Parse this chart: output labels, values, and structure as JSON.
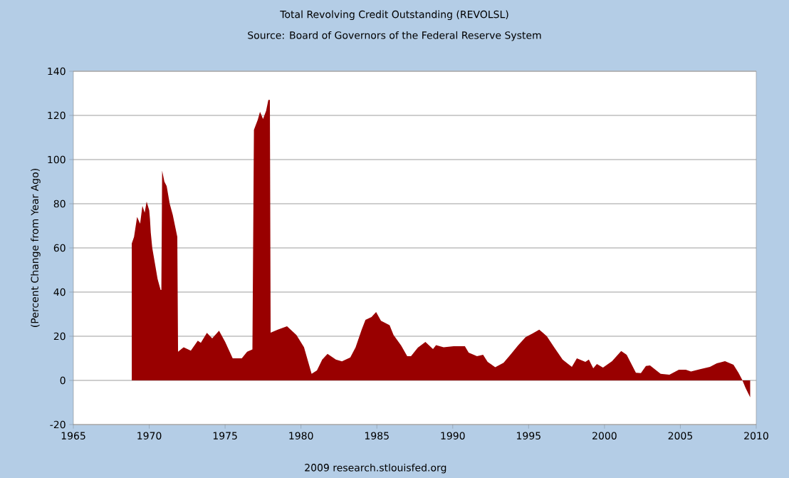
{
  "chart_data": {
    "type": "area",
    "title": "Total Revolving Credit Outstanding (REVOLSL)",
    "subtitle": "Source: Board of Governors of the Federal Reserve System",
    "ylabel": "(Percent Change from Year Ago)",
    "annotations": [
      "2009 research.stlouisfed.org"
    ],
    "color": "#990000",
    "grid": "y",
    "xlim": [
      1965,
      2010
    ],
    "xticks": [
      1965,
      1970,
      1975,
      1980,
      1985,
      1990,
      1995,
      2000,
      2005,
      2010
    ],
    "ylim": [
      -20,
      140
    ],
    "yticks": [
      -20,
      0,
      20,
      40,
      60,
      80,
      100,
      120,
      140
    ],
    "x": [
      1968.85,
      1969.0,
      1969.2,
      1969.4,
      1969.55,
      1969.7,
      1969.83,
      1970.0,
      1970.05,
      1970.1,
      1970.2,
      1970.4,
      1970.55,
      1970.75,
      1970.8,
      1970.85,
      1971.0,
      1971.15,
      1971.35,
      1971.55,
      1971.7,
      1971.85,
      1971.9,
      1972.27,
      1972.74,
      1973.2,
      1973.4,
      1973.8,
      1974.15,
      1974.6,
      1975.0,
      1975.5,
      1976.1,
      1976.45,
      1976.8,
      1976.9,
      1977.15,
      1977.3,
      1977.5,
      1977.7,
      1977.85,
      1977.95,
      1978.0,
      1978.47,
      1979.08,
      1979.7,
      1980.2,
      1980.7,
      1981.05,
      1981.4,
      1981.75,
      1982.3,
      1982.7,
      1983.25,
      1983.6,
      1984.0,
      1984.25,
      1984.65,
      1984.95,
      1985.27,
      1985.84,
      1986.1,
      1986.6,
      1987.0,
      1987.25,
      1987.7,
      1988.2,
      1988.7,
      1988.9,
      1989.4,
      1990.06,
      1990.8,
      1991.05,
      1991.6,
      1992.0,
      1992.3,
      1992.8,
      1993.35,
      1993.8,
      1994.3,
      1994.8,
      1995.27,
      1995.7,
      1996.2,
      1996.7,
      1997.24,
      1997.85,
      1998.18,
      1998.74,
      1998.97,
      1999.26,
      1999.5,
      1999.9,
      2000.5,
      2001.1,
      2001.46,
      2002.07,
      2002.4,
      2002.73,
      2003.0,
      2003.7,
      2004.28,
      2004.9,
      2005.36,
      2005.7,
      2006.3,
      2006.95,
      2007.4,
      2007.94,
      2008.5,
      2008.83,
      2009.07,
      2009.3,
      2009.6
    ],
    "values": [
      62,
      65,
      74,
      71,
      79,
      76,
      81,
      77,
      73,
      67,
      60,
      52,
      46,
      41,
      41,
      95,
      90,
      88,
      80,
      75,
      70,
      65,
      13,
      15,
      13.5,
      18,
      17,
      21.5,
      19,
      22.5,
      17.5,
      10,
      10,
      13,
      14,
      113.5,
      118,
      121.6,
      118.4,
      122,
      127,
      127,
      21.6,
      23,
      24.5,
      20.6,
      15,
      3,
      4.5,
      9.4,
      12,
      9.4,
      8.6,
      10.4,
      15,
      23,
      27.4,
      28.7,
      31,
      27,
      25,
      20.6,
      15.8,
      11,
      11,
      14.8,
      17.4,
      14.2,
      16,
      15,
      15.5,
      15.5,
      12.6,
      11,
      11.6,
      8.4,
      6,
      8,
      11.6,
      15.8,
      19.6,
      21.3,
      23,
      20,
      14.8,
      9.4,
      6.1,
      10,
      8.4,
      9.4,
      5.5,
      7.4,
      5.8,
      8.7,
      13.3,
      11.6,
      3.5,
      3.3,
      6.5,
      6.8,
      3,
      2.6,
      4.8,
      4.8,
      4,
      5.1,
      6.1,
      7.7,
      8.7,
      7.1,
      3.5,
      0.3,
      -3.5,
      -7.7
    ]
  }
}
